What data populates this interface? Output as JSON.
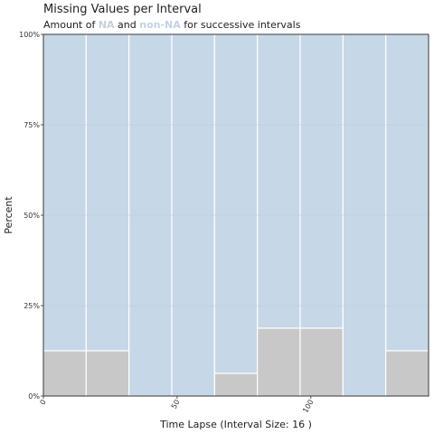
{
  "chart_data": {
    "type": "bar",
    "stacked": true,
    "percent": true,
    "title": "Missing Values per Interval",
    "subtitle": {
      "prefix": "Amount of ",
      "na": "NA",
      "middle": " and ",
      "nonna": "non-NA",
      "suffix": " for successive intervals"
    },
    "xlabel": "Time Lapse (Interval Size: 16 )",
    "ylabel": "Percent",
    "x_range": [
      0,
      144
    ],
    "interval_size": 16,
    "x_ticks": [
      0,
      50,
      100
    ],
    "y_ticks": [
      0,
      25,
      50,
      75,
      100
    ],
    "y_tick_labels": [
      "0%",
      "25%",
      "50%",
      "75%",
      "100%"
    ],
    "grid": true,
    "colors": {
      "na": "#c8c8c8",
      "non_na": "#c6d7e8",
      "grid": "#b8c9dc",
      "border": "#333333",
      "bar_outline": "#ffffff"
    },
    "intervals": [
      {
        "start": 0,
        "end": 16,
        "na_percent": 12.5
      },
      {
        "start": 16,
        "end": 32,
        "na_percent": 12.5
      },
      {
        "start": 32,
        "end": 48,
        "na_percent": 0
      },
      {
        "start": 48,
        "end": 64,
        "na_percent": 0
      },
      {
        "start": 64,
        "end": 80,
        "na_percent": 6.25
      },
      {
        "start": 80,
        "end": 96,
        "na_percent": 18.75
      },
      {
        "start": 96,
        "end": 112,
        "na_percent": 18.75
      },
      {
        "start": 112,
        "end": 128,
        "na_percent": 0
      },
      {
        "start": 128,
        "end": 144,
        "na_percent": 12.5
      }
    ]
  }
}
